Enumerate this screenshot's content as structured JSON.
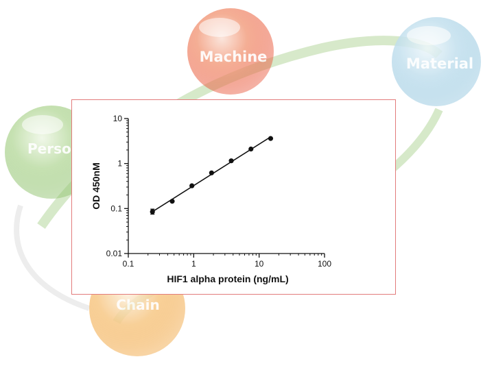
{
  "background": {
    "spheres": [
      {
        "label": "Machine",
        "color": "#e8553a"
      },
      {
        "label": "Material",
        "color": "#8ec3dd"
      },
      {
        "label": "Person",
        "color": "#8cc06a"
      },
      {
        "label": "Chain",
        "color": "#f0a33c"
      }
    ],
    "ring_color": "#a6cf8a"
  },
  "chart_data": {
    "type": "scatter",
    "xlabel": "HIF1 alpha protein (ng/mL)",
    "ylabel": "OD 450nM",
    "x_scale": "log",
    "y_scale": "log",
    "xlim": [
      0.1,
      100
    ],
    "ylim": [
      0.01,
      10
    ],
    "x_ticks": [
      "0.1",
      "1",
      "10",
      "100"
    ],
    "y_ticks": [
      "0.01",
      "0.1",
      "1",
      "10"
    ],
    "grid": false,
    "series": [
      {
        "x": [
          0.234,
          0.469,
          0.938,
          1.875,
          3.75,
          7.5,
          15
        ],
        "y": [
          0.085,
          0.145,
          0.32,
          0.62,
          1.15,
          2.1,
          3.6
        ],
        "error_low": [
          0.075,
          0.14,
          0.31,
          0.6,
          1.12,
          2.05,
          3.5
        ],
        "error_high": [
          0.097,
          0.152,
          0.33,
          0.64,
          1.18,
          2.15,
          3.7
        ]
      }
    ],
    "fit_line": "log-log linear"
  }
}
